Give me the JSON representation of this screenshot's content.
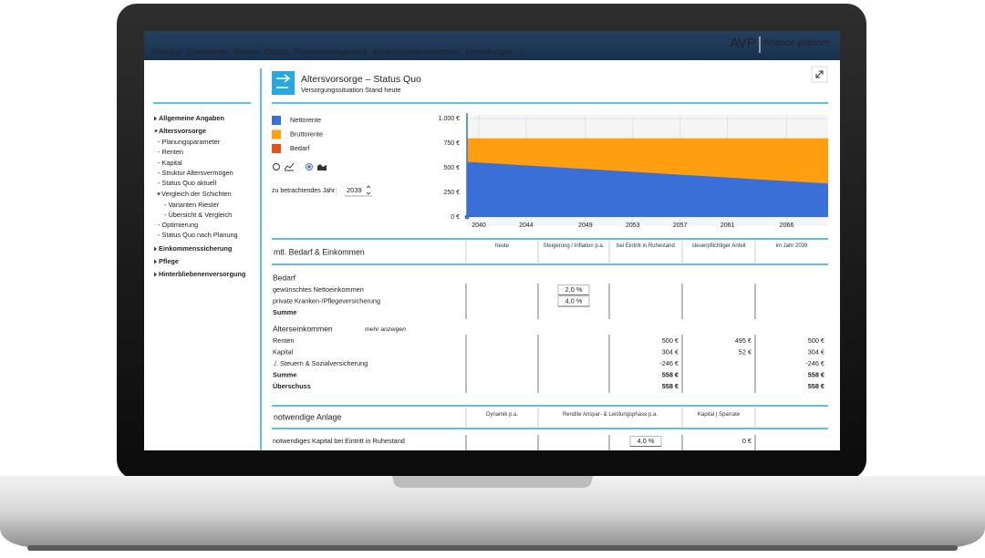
{
  "nav": {
    "menu": [
      "Planung",
      "Dokumente",
      "Wissen",
      "Charts",
      "Produktmanagement",
      "Beratungsdokumentation",
      "Einstellungen",
      "?"
    ],
    "logo": "AVP",
    "logo_sub": "finance planner"
  },
  "sidebar": [
    {
      "text": "Allgemeine Angaben",
      "level": 0,
      "marker": "closed"
    },
    {
      "text": "Altersvorsorge",
      "level": 0,
      "marker": "open"
    },
    {
      "text": "- Planungsparameter",
      "level": 1
    },
    {
      "text": "- Renten",
      "level": 1
    },
    {
      "text": "- Kapital",
      "level": 1
    },
    {
      "text": "- Struktur Altersvermögen",
      "level": 1
    },
    {
      "text": "- Status Quo aktuell",
      "level": 1,
      "active": true
    },
    {
      "text": "Vergleich der Schichten",
      "level": 1,
      "marker": "open"
    },
    {
      "text": "- Varianten Riester",
      "level": 2
    },
    {
      "text": "- Übersicht & Vergleich",
      "level": 2
    },
    {
      "text": "- Optimierung",
      "level": 1
    },
    {
      "text": "- Status Quo nach Planung",
      "level": 1
    },
    {
      "text": "Einkommenssicherung",
      "level": 0,
      "marker": "closed"
    },
    {
      "text": "Pflege",
      "level": 0,
      "marker": "closed"
    },
    {
      "text": "Hinterbliebenenversorgung",
      "level": 0,
      "marker": "closed"
    }
  ],
  "header": {
    "title": "Altersvorsorge – Status Quo",
    "subtitle": "Versorgungssituation Stand heute"
  },
  "chart_data": {
    "type": "area",
    "x": [
      2039,
      2069.5
    ],
    "series": [
      {
        "name": "Nettorente",
        "color": "#3a6fd8",
        "values": [
          560,
          340
        ]
      },
      {
        "name": "Bruttorente",
        "color": "#ff9f0f",
        "values": [
          800,
          800
        ]
      },
      {
        "name": "Bedarf",
        "color": "#e8501a",
        "values": [
          null,
          null
        ]
      }
    ],
    "xlim": [
      2039,
      2069.5
    ],
    "xticks": [
      2040,
      2044,
      2049,
      2053,
      2057,
      2061,
      2066
    ],
    "ylim": [
      0,
      1000
    ],
    "yticks": [
      {
        "value": 0,
        "label": "0 €"
      },
      {
        "value": 250,
        "label": "250 €"
      },
      {
        "value": 500,
        "label": "500 €"
      },
      {
        "value": 750,
        "label": "750 €"
      },
      {
        "value": 1000,
        "label": "1.000 €"
      }
    ],
    "grid": true
  },
  "controls": {
    "year_label": "zu betrachtendes Jahr:",
    "year": 2039
  },
  "table1": {
    "title": "mtl. Bedarf & Einkommen",
    "columns": [
      "heute",
      "Steigerung / Inflation p.a.",
      "bei Eintritt in Ruhestand",
      "steuerpflichtiger Anteil",
      "im Jahr 2039"
    ],
    "sections": [
      {
        "title": "Bedarf",
        "rows": [
          {
            "label": "gewünschtes Nettoeinkommen",
            "cells": [
              null,
              "2,0 %",
              null,
              null,
              null
            ]
          },
          {
            "label": "private Kranken-/Pflegeversicherung",
            "cells": [
              null,
              "4,0 %",
              null,
              null,
              null
            ]
          },
          {
            "label": "Summe",
            "bold": true,
            "cells": [
              null,
              null,
              null,
              null,
              null
            ]
          }
        ]
      },
      {
        "title": "Alterseinkommen",
        "note": "mehr anzeigen",
        "rows": [
          {
            "label": "Renten",
            "cells": [
              null,
              null,
              "500 €",
              "495 €",
              "500 €"
            ]
          },
          {
            "label": "Kapital",
            "cells": [
              null,
              null,
              "304 €",
              "52 €",
              "304 €"
            ]
          },
          {
            "label": "./. Steuern & Sozialversicherung",
            "cells": [
              null,
              null,
              "-246 €",
              null,
              "-246 €"
            ]
          },
          {
            "label": "Summe",
            "bold": true,
            "cells": [
              null,
              null,
              "558 €",
              null,
              "558 €"
            ]
          },
          {
            "label": "Überschuss",
            "bold": true,
            "cells": [
              null,
              null,
              "558 €",
              null,
              "558 €"
            ]
          }
        ]
      }
    ]
  },
  "table2": {
    "title": "notwendige Anlage",
    "columns": [
      "Dynamik p.a.",
      "Rendite Anspar- & Leistungsphase p.a.",
      "Kapital | Sparrate"
    ],
    "rows": [
      {
        "label": "notwendiges Kapital bei Eintritt in Ruhestand",
        "cells": [
          null,
          "4,0 %",
          "0 €"
        ]
      }
    ]
  }
}
